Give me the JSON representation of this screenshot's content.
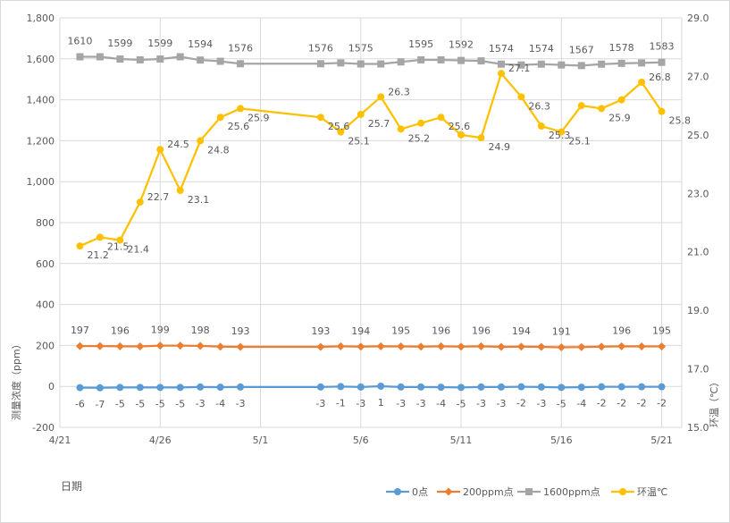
{
  "chart_data": {
    "type": "line",
    "xlabel": "日期",
    "ylabel": "测量浓度（ppm）",
    "y2label": "环温（℃）",
    "x_ticks": [
      "4/21",
      "4/26",
      "5/1",
      "5/6",
      "5/11",
      "5/16",
      "5/21"
    ],
    "xlim": [
      "4/21",
      "5/22"
    ],
    "ylim": [
      -200,
      1800
    ],
    "y_ticks": [
      "-200",
      "0",
      "200",
      "400",
      "600",
      "800",
      "1,000",
      "1,200",
      "1,400",
      "1,600",
      "1,800"
    ],
    "y2lim": [
      15.0,
      29.0
    ],
    "y2_ticks": [
      "15.0",
      "17.0",
      "19.0",
      "21.0",
      "23.0",
      "25.0",
      "27.0",
      "29.0"
    ],
    "grid": true,
    "legend": "bottom-right",
    "x": [
      "4/22",
      "4/23",
      "4/24",
      "4/25",
      "4/26",
      "4/27",
      "4/28",
      "4/29",
      "4/30",
      "5/4",
      "5/5",
      "5/6",
      "5/7",
      "5/8",
      "5/9",
      "5/10",
      "5/11",
      "5/12",
      "5/13",
      "5/14",
      "5/15",
      "5/16",
      "5/17",
      "5/18",
      "5/19",
      "5/20",
      "5/21"
    ],
    "series": [
      {
        "name": "0点",
        "axis": "left",
        "color": "#5b9bd5",
        "marker": "circle",
        "values": [
          -6,
          -7,
          -5,
          -5,
          -5,
          -5,
          -3,
          -4,
          -3,
          -3,
          -1,
          -3,
          1,
          -3,
          -3,
          -4,
          -5,
          -3,
          -3,
          -2,
          -3,
          -5,
          -4,
          -2,
          -2,
          -2,
          -2
        ],
        "labels": [
          "-6",
          "-7",
          "-5",
          "-5",
          "-5",
          "-5",
          "-3",
          "-4",
          "-3",
          "-3",
          "-1",
          "-3",
          "1",
          "-3",
          "-3",
          "-4",
          "-5",
          "-3",
          "-3",
          "-2",
          "-3",
          "-5",
          "-4",
          "-2",
          "-2",
          "-2",
          "-2"
        ]
      },
      {
        "name": "200ppm点",
        "axis": "left",
        "color": "#ed7d31",
        "marker": "diamond",
        "values": [
          197,
          197,
          196,
          195,
          199,
          199,
          198,
          194,
          193,
          193,
          196,
          194,
          196,
          195,
          194,
          196,
          194,
          196,
          193,
          194,
          193,
          191,
          192,
          194,
          196,
          195,
          195
        ],
        "labels": [
          "197",
          null,
          "196",
          null,
          "199",
          null,
          "198",
          null,
          "193",
          "193",
          null,
          "194",
          null,
          "195",
          null,
          "196",
          null,
          "196",
          null,
          "194",
          null,
          "191",
          null,
          null,
          "196",
          null,
          "195"
        ]
      },
      {
        "name": "1600ppm点",
        "axis": "left",
        "color": "#a5a5a5",
        "marker": "square",
        "values": [
          1610,
          1610,
          1599,
          1595,
          1599,
          1610,
          1594,
          1588,
          1576,
          1576,
          1580,
          1575,
          1575,
          1585,
          1595,
          1595,
          1592,
          1590,
          1574,
          1570,
          1574,
          1570,
          1567,
          1574,
          1578,
          1580,
          1583
        ],
        "labels": [
          "1610",
          null,
          "1599",
          null,
          "1599",
          null,
          "1594",
          null,
          "1576",
          "1576",
          null,
          "1575",
          null,
          null,
          "1595",
          null,
          "1592",
          null,
          "1574",
          null,
          "1574",
          null,
          "1567",
          null,
          "1578",
          null,
          "1583"
        ]
      },
      {
        "name": "环温℃",
        "axis": "right",
        "color": "#ffc000",
        "marker": "circle",
        "values": [
          21.2,
          21.5,
          21.4,
          22.7,
          24.5,
          23.1,
          24.8,
          25.6,
          25.9,
          25.6,
          25.1,
          25.7,
          26.3,
          25.2,
          25.4,
          25.6,
          25.0,
          24.9,
          27.1,
          26.3,
          25.3,
          25.1,
          26.0,
          25.9,
          26.2,
          26.8,
          25.8
        ],
        "labels": [
          "21.2",
          "21.5",
          "21.4",
          "22.7",
          "24.5",
          "23.1",
          "24.8",
          "25.6",
          "25.9",
          "25.6",
          "25.1",
          "25.7",
          "26.3",
          "25.2",
          null,
          "25.6",
          null,
          "24.9",
          "27.1",
          "26.3",
          "25.3",
          "25.1",
          null,
          "25.9",
          null,
          "26.8",
          "25.8"
        ]
      }
    ]
  }
}
